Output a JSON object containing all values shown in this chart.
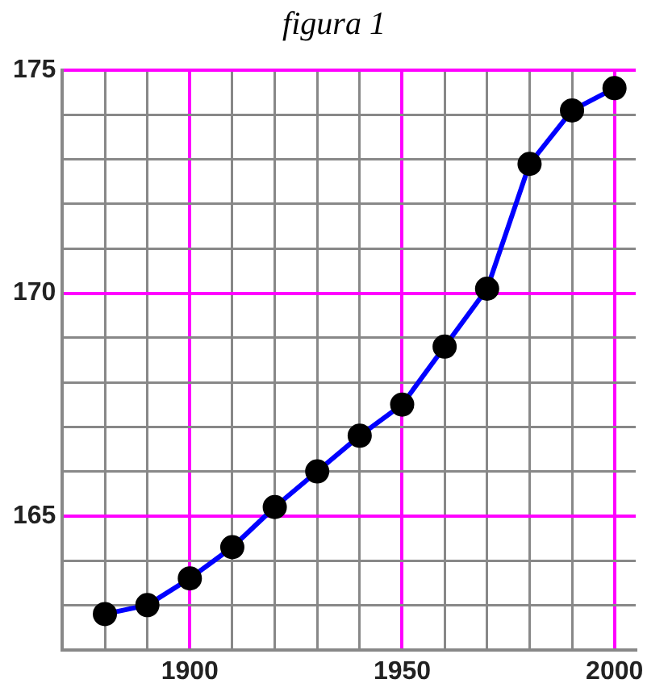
{
  "chart_data": {
    "type": "line",
    "title": "figura 1",
    "x": [
      1880,
      1890,
      1900,
      1910,
      1920,
      1930,
      1940,
      1950,
      1960,
      1970,
      1980,
      1990,
      2000
    ],
    "series": [
      {
        "color": "#0000ff",
        "colors": [
          "#000000",
          "#000000",
          "#000000",
          "#000000",
          "#000000",
          "#000000",
          "#000000",
          "#000000",
          "#000000",
          "#000000",
          "#000000",
          "#000000",
          "#000000"
        ],
        "values": [
          162.8,
          163.0,
          163.6,
          164.3,
          165.2,
          166.0,
          166.8,
          167.5,
          168.8,
          170.1,
          172.9,
          174.1,
          174.6
        ]
      }
    ],
    "xlim": [
      1870,
      2005
    ],
    "xticks": [
      {
        "value": 1870,
        "label": null
      },
      {
        "value": 1880,
        "label": null
      },
      {
        "value": 1890,
        "label": null
      },
      1900,
      {
        "value": 1910,
        "label": null
      },
      {
        "value": 1920,
        "label": null
      },
      {
        "value": 1930,
        "label": null
      },
      {
        "value": 1940,
        "label": null
      },
      1950,
      {
        "value": 1960,
        "label": null
      },
      {
        "value": 1970,
        "label": null
      },
      {
        "value": 1980,
        "label": null
      },
      {
        "value": 1990,
        "label": null
      },
      2000
    ],
    "ylim": [
      162,
      175
    ],
    "yticks": [
      {
        "value": 162,
        "label": null
      },
      {
        "value": 163,
        "label": null
      },
      {
        "value": 164,
        "label": null
      },
      165,
      {
        "value": 166,
        "label": null
      },
      {
        "value": 167,
        "label": null
      },
      {
        "value": 168,
        "label": null
      },
      {
        "value": 169,
        "label": null
      },
      170,
      {
        "value": 171,
        "label": null
      },
      {
        "value": 172,
        "label": null
      },
      {
        "value": 173,
        "label": null
      },
      {
        "value": 174,
        "label": null
      },
      175
    ],
    "grid": true,
    "marker": "circle",
    "line_style": "solid",
    "legend": false
  }
}
